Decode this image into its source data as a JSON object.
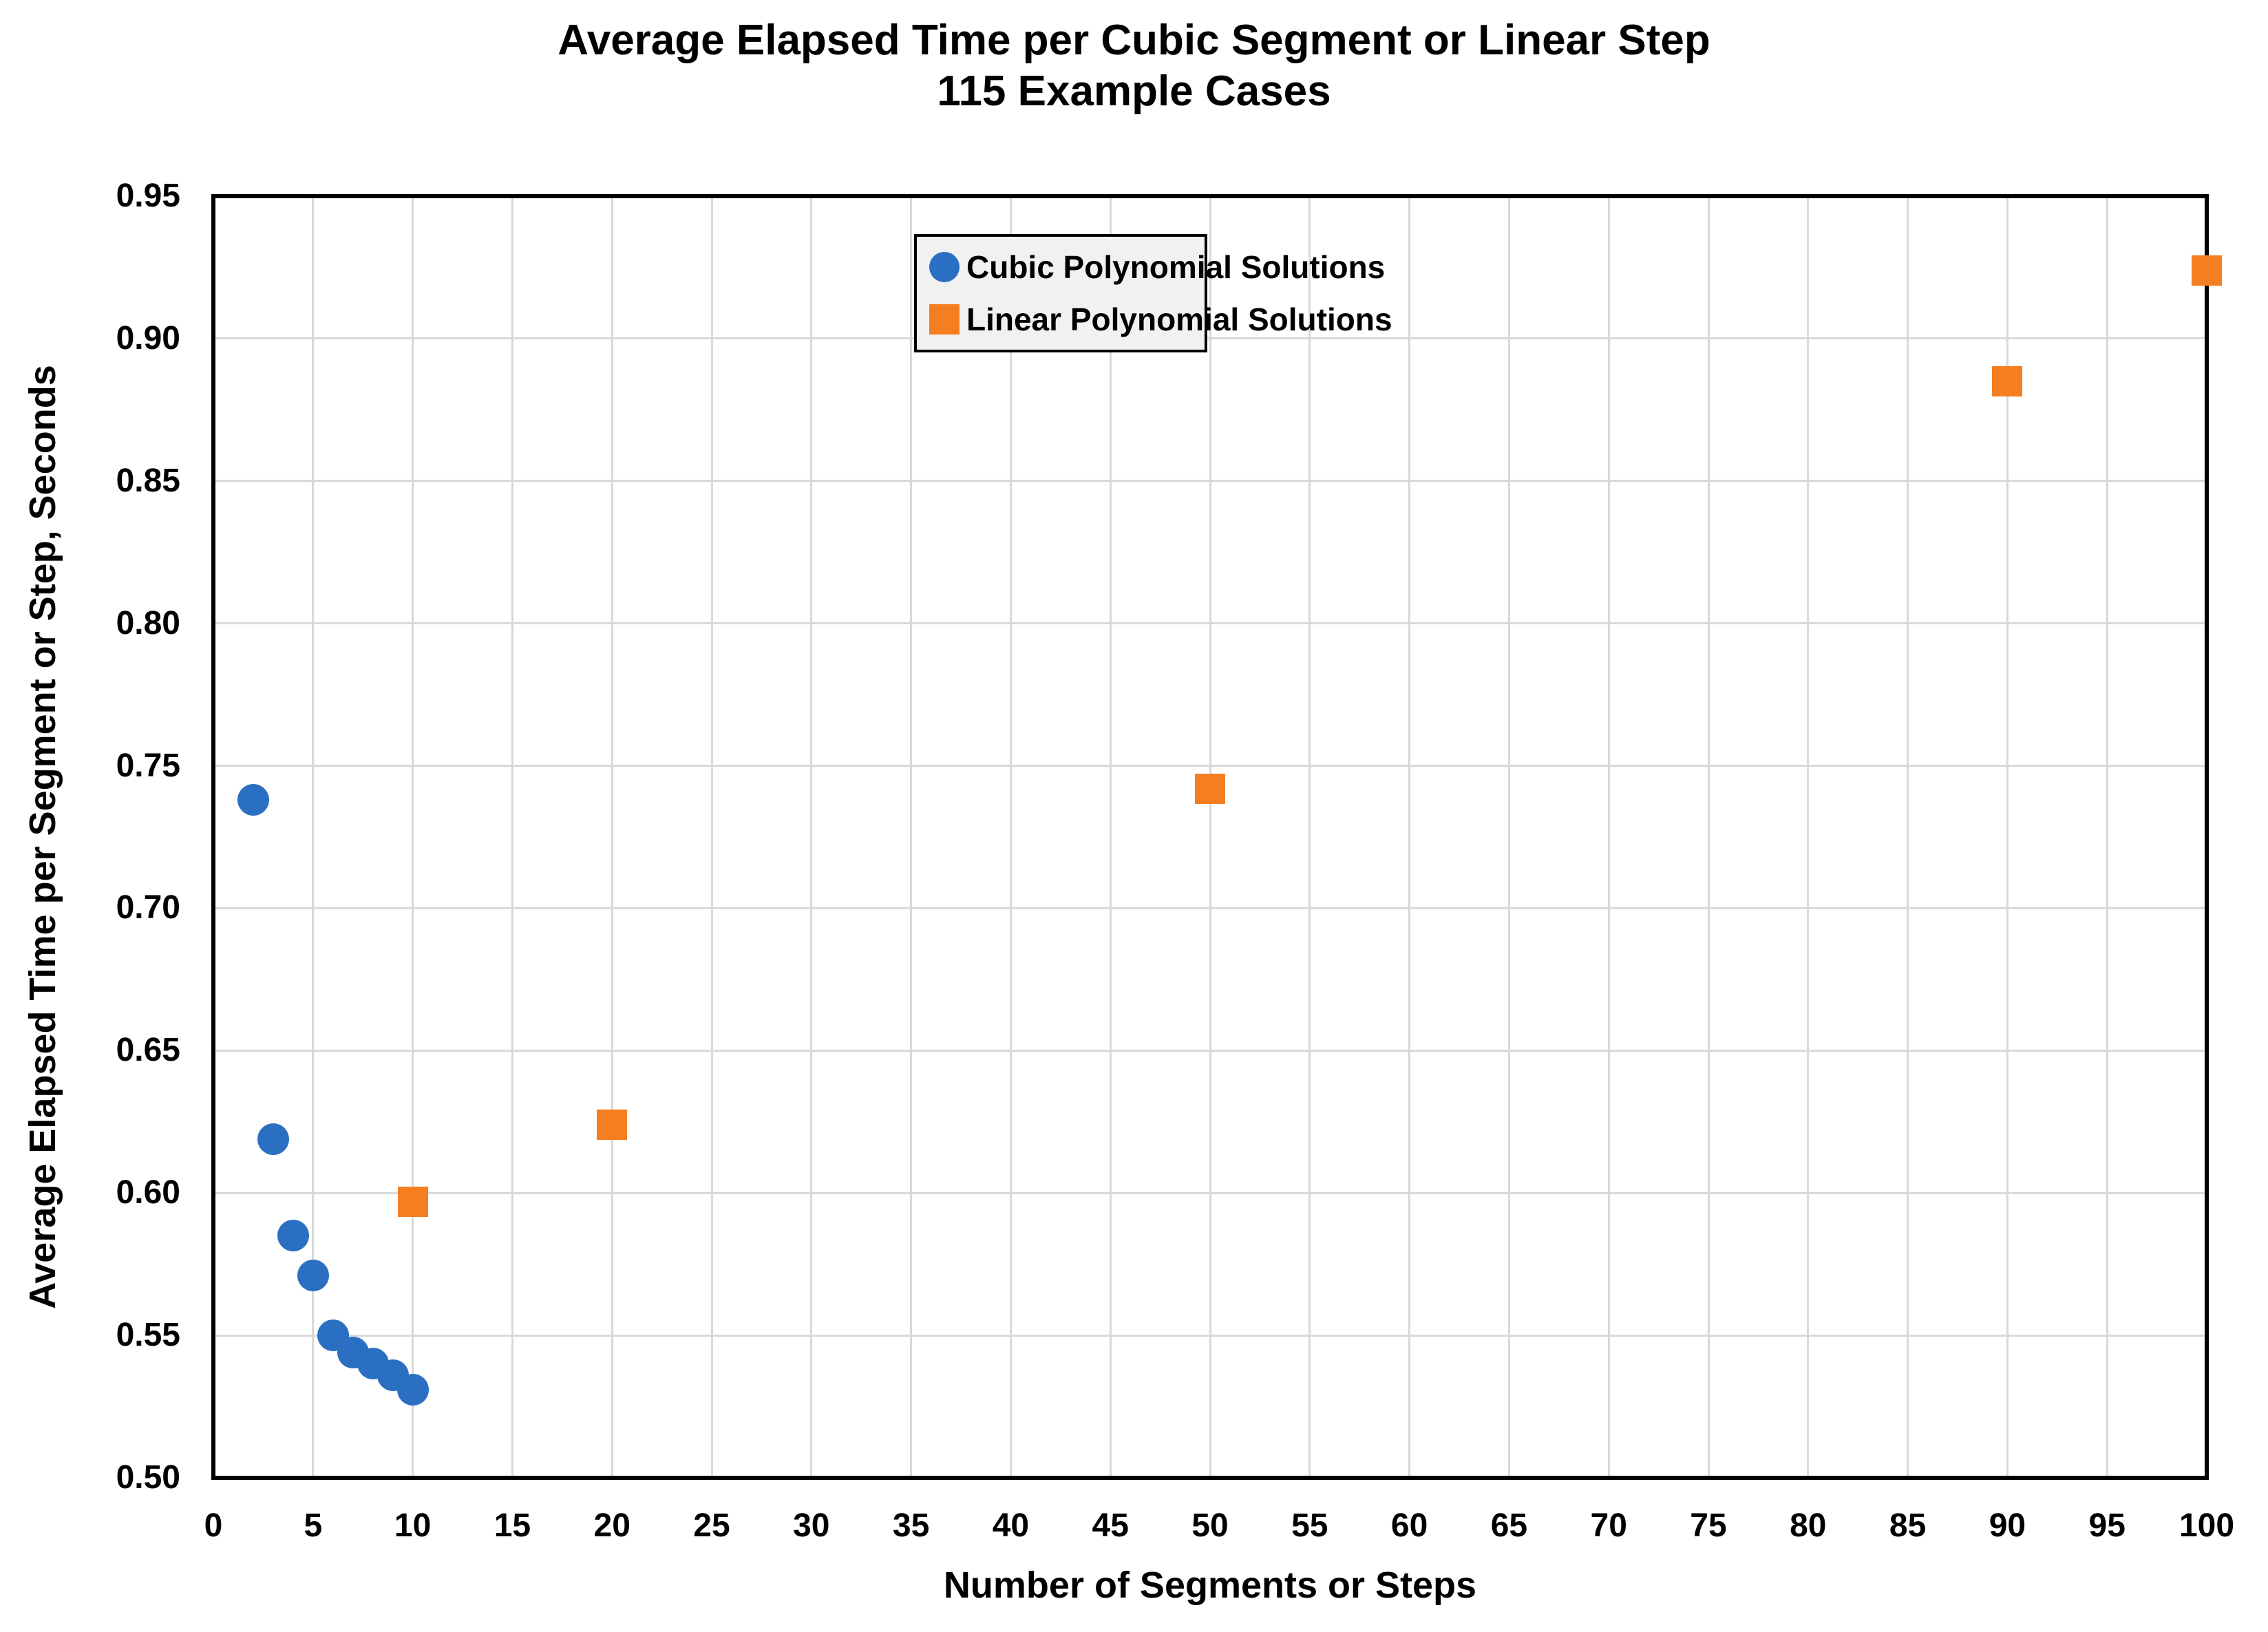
{
  "title": {
    "line1": "Average Elapsed Time per Cubic Segment or Linear Step",
    "line2": "115 Example Cases"
  },
  "x_axis": {
    "title": "Number of Segments or Steps",
    "min": 0,
    "max": 100,
    "tick_step": 5,
    "ticks": [
      "0",
      "5",
      "10",
      "15",
      "20",
      "25",
      "30",
      "35",
      "40",
      "45",
      "50",
      "55",
      "60",
      "65",
      "70",
      "75",
      "80",
      "85",
      "90",
      "95",
      "100"
    ]
  },
  "y_axis": {
    "title": "Average Elapsed Time per Segment or Step, Seconds",
    "min": 0.5,
    "max": 0.95,
    "tick_step": 0.05,
    "ticks": [
      "0.50",
      "0.55",
      "0.60",
      "0.65",
      "0.70",
      "0.75",
      "0.80",
      "0.85",
      "0.90",
      "0.95"
    ]
  },
  "legend": {
    "items": [
      {
        "label": "Cubic Polynomial Solutions",
        "marker": "circle",
        "color": "#2b6fc2"
      },
      {
        "label": "Linear Polynomial Solutions",
        "marker": "square",
        "color": "#f57e20"
      }
    ]
  },
  "colors": {
    "cubic_blue": "#2b6fc2",
    "linear_orange": "#f57e20",
    "gridline": "#d9d9d9",
    "axis_frame": "#000000",
    "legend_background": "#f1f1f1",
    "page_background": "#ffffff"
  },
  "chart_data": {
    "type": "scatter",
    "title": "Average Elapsed Time per Cubic Segment or Linear Step — 115 Example Cases",
    "xlabel": "Number of Segments or Steps",
    "ylabel": "Average Elapsed Time per Segment or Step, Seconds",
    "xlim": [
      0,
      100
    ],
    "ylim": [
      0.5,
      0.95
    ],
    "grid": true,
    "legend_position": "top-center-inside",
    "series": [
      {
        "name": "Cubic Polynomial Solutions",
        "marker": "circle",
        "color": "#2b6fc2",
        "points": [
          [
            2,
            0.738
          ],
          [
            3,
            0.619
          ],
          [
            4,
            0.585
          ],
          [
            5,
            0.571
          ],
          [
            6,
            0.55
          ],
          [
            7,
            0.544
          ],
          [
            8,
            0.54
          ],
          [
            9,
            0.536
          ],
          [
            10,
            0.531
          ]
        ]
      },
      {
        "name": "Linear Polynomial Solutions",
        "marker": "square",
        "color": "#f57e20",
        "points": [
          [
            10,
            0.597
          ],
          [
            20,
            0.624
          ],
          [
            50,
            0.742
          ],
          [
            90,
            0.885
          ],
          [
            100,
            0.924
          ]
        ]
      }
    ]
  }
}
